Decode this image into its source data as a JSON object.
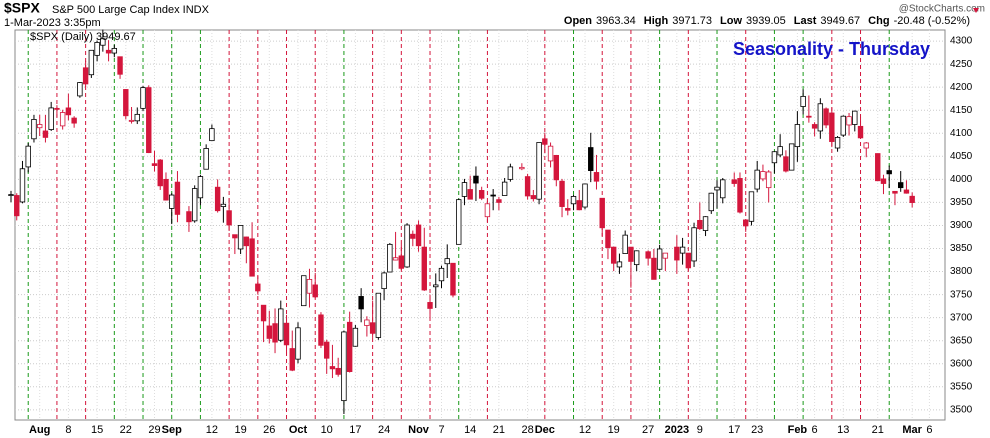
{
  "chart_data": {
    "type": "candlestick",
    "title": "$SPX",
    "subtitle": "S&P 500 Large Cap Index INDX",
    "timestamp": "1-Mar-2023 3:35pm",
    "watermark": "@StockCharts.com",
    "legend": "$SPX (Daily) 3949.67",
    "annotation": "Seasonality - Thursday",
    "quote": [
      {
        "label": "Open",
        "value": 3963.34
      },
      {
        "label": "High",
        "value": 3971.73
      },
      {
        "label": "Low",
        "value": 3939.05
      },
      {
        "label": "Last",
        "value": 3949.67
      },
      {
        "label": "Chg",
        "value": "-20.48 (-0.52%)"
      }
    ],
    "up_color": "#000000",
    "down_color": "#d4163c",
    "seasonal_up_color": "#1a9a1a",
    "seasonal_down_color": "#d4163c",
    "annotation_color": "#1414c8",
    "categories": [
      null,
      null,
      null,
      null,
      null,
      "Aug",
      null,
      null,
      null,
      null,
      "8",
      null,
      null,
      null,
      null,
      "15",
      null,
      null,
      null,
      null,
      "22",
      null,
      null,
      null,
      null,
      "29",
      null,
      null,
      "Sep",
      null,
      null,
      null,
      null,
      null,
      null,
      "12",
      null,
      null,
      null,
      null,
      "19",
      null,
      null,
      null,
      null,
      "26",
      null,
      null,
      null,
      null,
      "Oct",
      null,
      null,
      null,
      null,
      "10",
      null,
      null,
      null,
      null,
      "17",
      null,
      null,
      null,
      null,
      "24",
      null,
      null,
      null,
      null,
      null,
      "Nov",
      null,
      null,
      null,
      "7",
      null,
      null,
      null,
      null,
      "14",
      null,
      null,
      null,
      null,
      "21",
      null,
      null,
      null,
      null,
      "28",
      null,
      null,
      "Dec",
      null,
      null,
      null,
      null,
      null,
      null,
      "12",
      null,
      null,
      null,
      null,
      "19",
      null,
      null,
      null,
      null,
      null,
      "27",
      null,
      null,
      null,
      null,
      "2023",
      null,
      null,
      null,
      "9",
      null,
      null,
      null,
      null,
      null,
      "17",
      null,
      null,
      null,
      "23",
      null,
      null,
      null,
      null,
      null,
      null,
      "Feb",
      null,
      null,
      "6",
      null,
      null,
      null,
      null,
      "13",
      null,
      null,
      null,
      null,
      null,
      "21",
      null,
      null,
      null,
      null,
      null,
      "Mar",
      null,
      null,
      "6"
    ],
    "open": [
      3966,
      3965,
      3951,
      4027,
      4088,
      4112,
      4105,
      4108,
      4154,
      4116,
      4155,
      4133,
      4181,
      4242,
      4227,
      4269,
      4291,
      4280,
      4274,
      4266,
      4195,
      4126,
      4127,
      4154,
      4199,
      4034,
      4042,
      4000,
      3937,
      3994,
      null,
      3930,
      3910,
      3960,
      4022,
      4084,
      3983,
      3941,
      3932,
      3880,
      3849,
      3875,
      3871,
      3773,
      3727,
      3682,
      3687,
      3651,
      3688,
      3633,
      3610,
      3726,
      3753,
      3771,
      3706,
      3647,
      3594,
      3590,
      3520,
      3690,
      3638,
      3746,
      3683,
      3689,
      3657,
      3763,
      3799,
      3825,
      3834,
      3810,
      3881,
      3901,
      3853,
      3733,
      3767,
      3780,
      3817,
      3818,
      3859,
      3963,
      3978,
      4007,
      3976,
      3919,
      3966,
      3956,
      3965,
      4000,
      null,
      4023,
      4006,
      3965,
      3957,
      4088,
      4040,
      4052,
      3996,
      3937,
      3947,
      3954,
      3940,
      4069,
      4015,
      3959,
      3890,
      3853,
      3810,
      3839,
      3853,
      3815,
      null,
      3843,
      3829,
      3805,
      3829,
      null,
      3853,
      3840,
      3840,
      3823,
      3911,
      3889,
      3932,
      3977,
      3960,
      null,
      3999,
      4002,
      3912,
      3909,
      3979,
      4001,
      3982,
      4036,
      4053,
      4049,
      4020,
      4071,
      4158,
      4137,
      4119,
      4105,
      4153,
      4144,
      4068,
      4096,
      4118,
      4119,
      4115,
      4068,
      null,
      4056,
      4001,
      4019,
      3974,
      3993,
      3977,
      3963.34,
      null,
      null,
      null
    ],
    "high": [
      3975,
      3970,
      4040,
      4079,
      4140,
      4140,
      4140,
      4168,
      4161,
      4151,
      4186,
      4137,
      4211,
      4257,
      4280,
      4301,
      4325,
      4302,
      4292,
      4266,
      4196,
      4157,
      4156,
      4203,
      4204,
      4062,
      4044,
      4015,
      3970,
      4018,
      null,
      3942,
      3987,
      4010,
      4076,
      4119,
      4000,
      3962,
      3959,
      3880,
      3900,
      3876,
      3907,
      3790,
      3727,
      3715,
      3720,
      3737,
      3706,
      3672,
      3690,
      3791,
      3806,
      3797,
      3712,
      3652,
      3641,
      3613,
      3672,
      3713,
      3684,
      3764,
      3703,
      3737,
      3753,
      3800,
      3862,
      3886,
      3860,
      3905,
      3889,
      3911,
      3895,
      3750,
      3796,
      3813,
      3859,
      3818,
      3958,
      4001,
      4008,
      4028,
      3984,
      3954,
      3979,
      3962,
      4003,
      4034,
      null,
      4035,
      4012,
      3977,
      4080,
      4101,
      4080,
      4053,
      4001,
      3957,
      3966,
      3977,
      3991,
      4101,
      4053,
      3959,
      3890,
      3854,
      3839,
      3889,
      3853,
      3846,
      null,
      3846,
      3849,
      3858,
      3840,
      null,
      3879,
      3873,
      3840,
      3906,
      3950,
      3920,
      3971,
      3998,
      4003,
      null,
      4015,
      4015,
      3912,
      3973,
      4040,
      4032,
      4020,
      4061,
      4098,
      4063,
      4077,
      4148,
      4195,
      4182,
      4124,
      4176,
      4156,
      4156,
      4094,
      4139,
      4144,
      4149,
      4135,
      4081,
      null,
      4056,
      4010,
      4030,
      3974,
      4018,
      3998,
      3971.73,
      null,
      null,
      null
    ],
    "low": [
      3950,
      3911,
      3948,
      4015,
      4080,
      4094,
      4080,
      4105,
      4135,
      4108,
      4128,
      4112,
      4177,
      4201,
      4220,
      4256,
      4277,
      4256,
      4265,
      4218,
      4130,
      4121,
      4120,
      4148,
      4057,
      4017,
      3977,
      3954,
      3903,
      3907,
      null,
      3886,
      3906,
      3944,
      4022,
      4084,
      3928,
      3906,
      3888,
      3838,
      3838,
      3818,
      3790,
      3750,
      3647,
      3644,
      3623,
      3647,
      3620,
      3584,
      3601,
      3726,
      3722,
      3742,
      3634,
      3578,
      3569,
      3572,
      3491,
      3581,
      3637,
      3690,
      3659,
      3656,
      3652,
      3738,
      3799,
      3824,
      3803,
      3808,
      3855,
      3843,
      3758,
      3698,
      3721,
      3764,
      3786,
      3744,
      3859,
      3944,
      3957,
      3953,
      3955,
      3907,
      3933,
      3933,
      3965,
      3995,
      null,
      4020,
      3956,
      3952,
      3946,
      4057,
      4026,
      3985,
      3918,
      3922,
      3933,
      3933,
      3935,
      3994,
      3978,
      3877,
      3827,
      3801,
      3795,
      3839,
      3765,
      3801,
      null,
      3813,
      3783,
      3805,
      3801,
      null,
      3795,
      3815,
      3802,
      3810,
      3890,
      3877,
      3925,
      3937,
      3948,
      null,
      3984,
      3926,
      3886,
      3900,
      3972,
      3996,
      3950,
      4013,
      4048,
      4015,
      4020,
      4038,
      4141,
      4123,
      4093,
      4088,
      4111,
      4070,
      4060,
      4092,
      4095,
      4104,
      4089,
      4048,
      null,
      3996,
      3968,
      3981,
      3944,
      3973,
      3969,
      3939.05,
      null,
      null,
      null
    ],
    "close": [
      3967,
      3921,
      4023,
      4072,
      4130,
      4119,
      4091,
      4155,
      4152,
      4145,
      4140,
      4122,
      4210,
      4207,
      4280,
      4297,
      4305,
      4274,
      4284,
      4228,
      4138,
      4128,
      4141,
      4199,
      4058,
      4030,
      3986,
      3955,
      3966,
      3924,
      null,
      3908,
      3980,
      4006,
      4067,
      4110,
      3932,
      3946,
      3901,
      3873,
      3900,
      3856,
      3790,
      3758,
      3693,
      3655,
      3647,
      3719,
      3641,
      3586,
      3678,
      3791,
      3783,
      3745,
      3640,
      3612,
      3589,
      3577,
      3669,
      3583,
      3677,
      3719,
      3695,
      3666,
      3753,
      3797,
      3859,
      3830,
      3807,
      3901,
      3872,
      3856,
      3760,
      3720,
      3771,
      3807,
      3828,
      3749,
      3956,
      3993,
      3957,
      3992,
      3959,
      3947,
      3965,
      3950,
      3994,
      4027,
      null,
      4026,
      3964,
      3958,
      4080,
      4076,
      4072,
      3999,
      3941,
      3933,
      3963,
      3934,
      3990,
      4019,
      3996,
      3895,
      3852,
      3818,
      3821,
      3879,
      3822,
      3845,
      null,
      3829,
      3783,
      3849,
      3840,
      null,
      3825,
      3853,
      3808,
      3895,
      3893,
      3919,
      3970,
      3983,
      3999,
      null,
      3991,
      3929,
      3899,
      3973,
      4020,
      4017,
      4016,
      4060,
      4071,
      4018,
      4077,
      4119,
      4180,
      4136,
      4111,
      4164,
      4118,
      4082,
      4091,
      4137,
      4136,
      4148,
      4090,
      4079,
      null,
      3997,
      3991,
      4012,
      3970,
      3982,
      3970,
      3949.67,
      null,
      null,
      null
    ],
    "ylim": [
      3478,
      4324
    ],
    "yticks": [
      3500,
      3550,
      3600,
      3650,
      3700,
      3750,
      3800,
      3850,
      3900,
      3950,
      4000,
      4050,
      4100,
      4150,
      4200,
      4250,
      4300
    ],
    "grid": true
  }
}
